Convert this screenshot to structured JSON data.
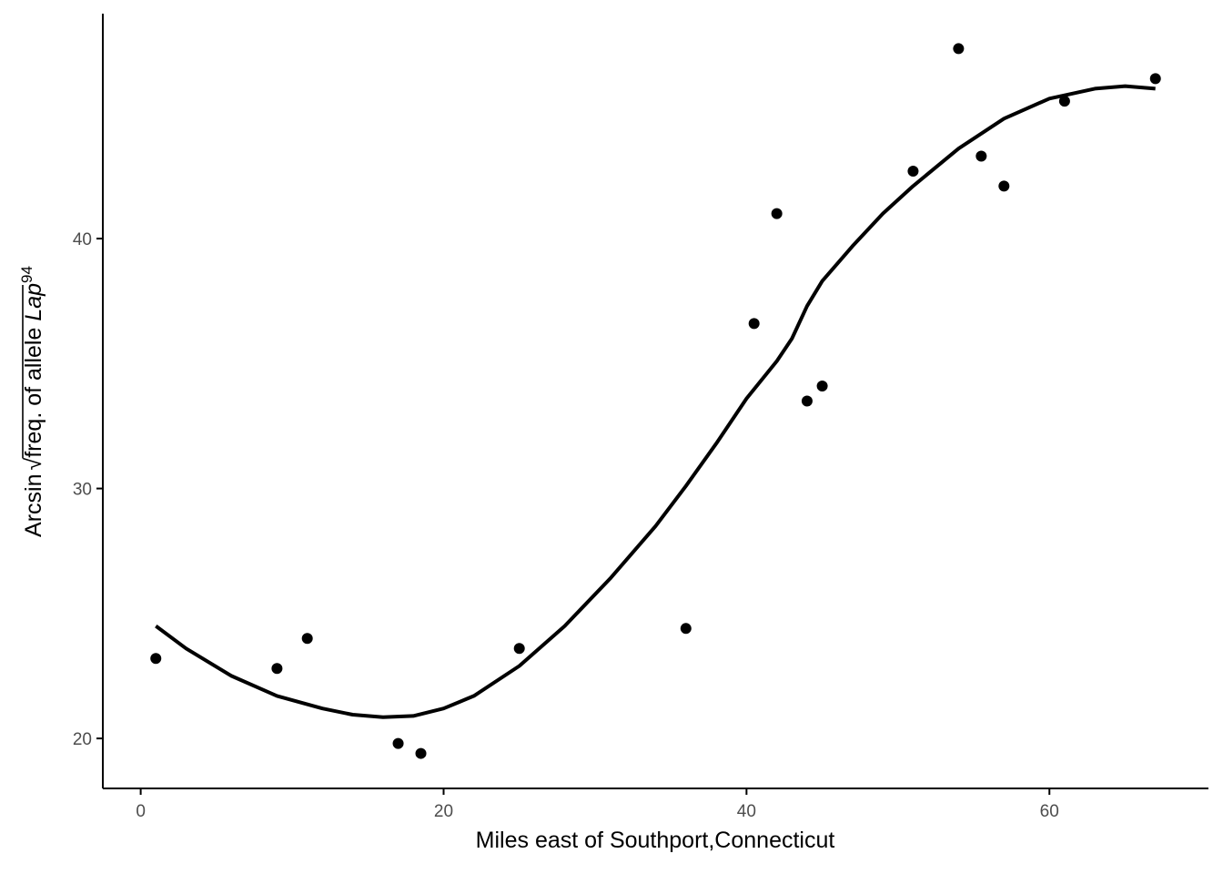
{
  "chart_data": {
    "type": "scatter",
    "xlabel": "Miles east of Southport,Connecticut",
    "ylabel": {
      "prefix": "Arcsin",
      "radical": "√",
      "radicand": "freq. of allele ",
      "gene": "Lap",
      "superscript": "94"
    },
    "xlim": [
      -2.5,
      70.5
    ],
    "ylim": [
      18,
      49
    ],
    "xticks": [
      0,
      20,
      40,
      60
    ],
    "yticks": [
      20,
      30,
      40
    ],
    "xtick_labels": [
      "0",
      "20",
      "40",
      "60"
    ],
    "ytick_labels": [
      "20",
      "30",
      "40"
    ],
    "grid": false,
    "legend": "none",
    "points": {
      "x": [
        1.0,
        9.0,
        11.0,
        17.0,
        18.5,
        25.0,
        36.0,
        40.5,
        42.0,
        44.0,
        45.0,
        51.0,
        54.0,
        55.5,
        57.0,
        61.0,
        67.0
      ],
      "y": [
        23.2,
        22.8,
        24.0,
        19.8,
        19.4,
        23.6,
        24.4,
        36.6,
        41.0,
        33.5,
        34.1,
        42.7,
        47.6,
        43.3,
        42.1,
        45.5,
        46.4
      ]
    },
    "smooth_line": {
      "x": [
        1,
        3,
        6,
        9,
        12,
        14,
        16,
        18,
        20,
        22,
        25,
        28,
        31,
        34,
        36,
        38,
        40,
        42,
        43,
        44,
        45,
        47,
        49,
        51,
        54,
        57,
        60,
        63,
        65,
        67
      ],
      "y": [
        24.5,
        23.6,
        22.5,
        21.7,
        21.2,
        20.95,
        20.85,
        20.9,
        21.2,
        21.7,
        22.9,
        24.5,
        26.4,
        28.5,
        30.1,
        31.8,
        33.6,
        35.1,
        36.0,
        37.3,
        38.3,
        39.7,
        41.0,
        42.1,
        43.6,
        44.8,
        45.6,
        46.0,
        46.1,
        46.0
      ]
    },
    "colors": {
      "points": "#000000",
      "line": "#000000",
      "axis": "#000000",
      "tick_text": "#4d4d4d"
    }
  }
}
